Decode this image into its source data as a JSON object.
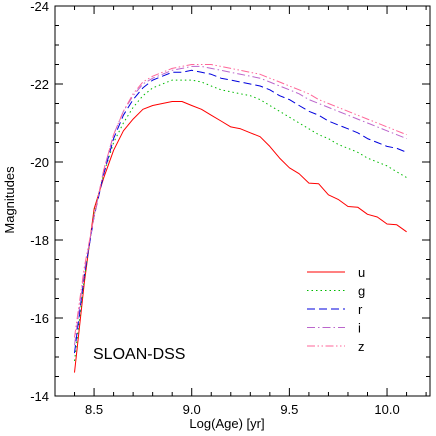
{
  "chart_data": {
    "type": "line",
    "title": "",
    "xlabel": "Log(Age) [yr]",
    "ylabel": "Magnitudes",
    "xlim": [
      8.3,
      10.22
    ],
    "ylim": [
      -14,
      -24
    ],
    "y_inverted": true,
    "xticks": [
      8.5,
      9.0,
      9.5,
      10.0
    ],
    "xtick_labels": [
      "8.5",
      "9.0",
      "9.5",
      "10.0"
    ],
    "yticks": [
      -14,
      -16,
      -18,
      -20,
      -22,
      -24
    ],
    "ytick_labels": [
      "-14",
      "-16",
      "-18",
      "-20",
      "-22",
      "-24"
    ],
    "grid": false,
    "legend_position": "bottom-right",
    "annotation": "SLOAN-DSS",
    "series": [
      {
        "name": "u",
        "color": "#ff0000",
        "dash": "solid",
        "x": [
          8.4,
          8.45,
          8.5,
          8.55,
          8.6,
          8.65,
          8.7,
          8.75,
          8.8,
          8.85,
          8.9,
          8.95,
          9.0,
          9.05,
          9.1,
          9.15,
          9.2,
          9.25,
          9.3,
          9.35,
          9.4,
          9.45,
          9.5,
          9.55,
          9.6,
          9.65,
          9.7,
          9.75,
          9.8,
          9.85,
          9.9,
          9.95,
          10.0,
          10.05,
          10.1
        ],
        "y": [
          -14.6,
          -16.9,
          -18.8,
          -19.6,
          -20.3,
          -20.8,
          -21.1,
          -21.35,
          -21.45,
          -21.5,
          -21.55,
          -21.55,
          -21.45,
          -21.35,
          -21.2,
          -21.05,
          -20.9,
          -20.85,
          -20.75,
          -20.65,
          -20.4,
          -20.1,
          -19.85,
          -19.7,
          -19.5,
          -19.4,
          -19.2,
          -19.0,
          -18.9,
          -18.8,
          -18.7,
          -18.55,
          -18.45,
          -18.35,
          -18.25
        ]
      },
      {
        "name": "g",
        "color": "#00bb00",
        "dash": "dotted",
        "x": [
          8.4,
          8.45,
          8.5,
          8.55,
          8.6,
          8.65,
          8.7,
          8.75,
          8.8,
          8.85,
          8.9,
          8.95,
          9.0,
          9.05,
          9.1,
          9.15,
          9.2,
          9.25,
          9.3,
          9.35,
          9.4,
          9.45,
          9.5,
          9.55,
          9.6,
          9.65,
          9.7,
          9.75,
          9.8,
          9.85,
          9.9,
          9.95,
          10.0,
          10.05,
          10.1
        ],
        "y": [
          -14.9,
          -17.0,
          -18.7,
          -19.7,
          -20.5,
          -21.0,
          -21.4,
          -21.7,
          -21.9,
          -22.0,
          -22.1,
          -22.1,
          -22.1,
          -22.05,
          -21.95,
          -21.85,
          -21.8,
          -21.75,
          -21.7,
          -21.6,
          -21.45,
          -21.3,
          -21.15,
          -21.0,
          -20.85,
          -20.7,
          -20.6,
          -20.45,
          -20.35,
          -20.25,
          -20.1,
          -20.0,
          -19.9,
          -19.75,
          -19.6
        ]
      },
      {
        "name": "r",
        "color": "#0000dd",
        "dash": "dashed",
        "x": [
          8.4,
          8.45,
          8.5,
          8.55,
          8.6,
          8.65,
          8.7,
          8.75,
          8.8,
          8.85,
          8.9,
          8.95,
          9.0,
          9.05,
          9.1,
          9.15,
          9.2,
          9.25,
          9.3,
          9.35,
          9.4,
          9.45,
          9.5,
          9.55,
          9.6,
          9.65,
          9.7,
          9.75,
          9.8,
          9.85,
          9.9,
          9.95,
          10.0,
          10.05,
          10.1
        ],
        "y": [
          -15.1,
          -17.1,
          -18.6,
          -19.7,
          -20.6,
          -21.2,
          -21.6,
          -21.9,
          -22.1,
          -22.2,
          -22.3,
          -22.3,
          -22.35,
          -22.3,
          -22.25,
          -22.15,
          -22.1,
          -22.05,
          -22.0,
          -21.95,
          -21.85,
          -21.7,
          -21.6,
          -21.45,
          -21.3,
          -21.2,
          -21.05,
          -20.95,
          -20.85,
          -20.75,
          -20.6,
          -20.5,
          -20.4,
          -20.35,
          -20.25
        ]
      },
      {
        "name": "i",
        "color": "#bb66cc",
        "dash": "dashdot",
        "x": [
          8.4,
          8.45,
          8.5,
          8.55,
          8.6,
          8.65,
          8.7,
          8.75,
          8.8,
          8.85,
          8.9,
          8.95,
          9.0,
          9.05,
          9.1,
          9.15,
          9.2,
          9.25,
          9.3,
          9.35,
          9.4,
          9.45,
          9.5,
          9.55,
          9.6,
          9.65,
          9.7,
          9.75,
          9.8,
          9.85,
          9.9,
          9.95,
          10.0,
          10.05,
          10.1
        ],
        "y": [
          -15.3,
          -17.2,
          -18.6,
          -19.8,
          -20.7,
          -21.3,
          -21.7,
          -22.0,
          -22.15,
          -22.25,
          -22.35,
          -22.4,
          -22.45,
          -22.45,
          -22.4,
          -22.35,
          -22.3,
          -22.25,
          -22.2,
          -22.15,
          -22.05,
          -21.95,
          -21.85,
          -21.75,
          -21.6,
          -21.5,
          -21.4,
          -21.3,
          -21.2,
          -21.1,
          -21.0,
          -20.9,
          -20.8,
          -20.7,
          -20.6
        ]
      },
      {
        "name": "z",
        "color": "#ff6699",
        "dash": "dashdotdot",
        "x": [
          8.4,
          8.45,
          8.5,
          8.55,
          8.6,
          8.65,
          8.7,
          8.75,
          8.8,
          8.85,
          8.9,
          8.95,
          9.0,
          9.05,
          9.1,
          9.15,
          9.2,
          9.25,
          9.3,
          9.35,
          9.4,
          9.45,
          9.5,
          9.55,
          9.6,
          9.65,
          9.7,
          9.75,
          9.8,
          9.85,
          9.9,
          9.95,
          10.0,
          10.05,
          10.1
        ],
        "y": [
          -15.5,
          -17.3,
          -18.6,
          -19.8,
          -20.7,
          -21.3,
          -21.75,
          -22.05,
          -22.2,
          -22.3,
          -22.4,
          -22.45,
          -22.5,
          -22.5,
          -22.5,
          -22.45,
          -22.4,
          -22.35,
          -22.3,
          -22.25,
          -22.15,
          -22.05,
          -21.95,
          -21.85,
          -21.75,
          -21.6,
          -21.5,
          -21.4,
          -21.3,
          -21.2,
          -21.1,
          -21.0,
          -20.9,
          -20.8,
          -20.7
        ]
      }
    ]
  }
}
